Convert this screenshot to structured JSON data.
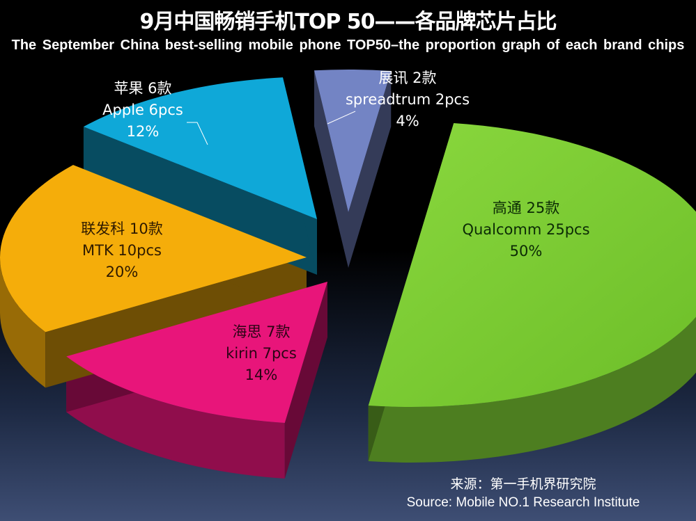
{
  "chart_data": {
    "type": "pie",
    "title": "9月中国畅销手机TOP 50——各品牌芯片占比",
    "subtitle": "The September China best-selling mobile phone TOP50–the proportion graph of each brand chips",
    "slices": [
      {
        "key": "qualcomm",
        "zh": "高通 25款",
        "en": "Qualcomm  25pcs",
        "pct": "50%",
        "value": 25,
        "color": "#7ccc33"
      },
      {
        "key": "kirin",
        "zh": "海思 7款",
        "en": "kirin  7pcs",
        "pct": "14%",
        "value": 7,
        "color": "#e8157a"
      },
      {
        "key": "mtk",
        "zh": "联发科 10款",
        "en": "MTK  10pcs",
        "pct": "20%",
        "value": 10,
        "color": "#f5ad0a"
      },
      {
        "key": "apple",
        "zh": "苹果 6款",
        "en": "Apple   6pcs",
        "pct": "12%",
        "value": 6,
        "color": "#0fa8d8"
      },
      {
        "key": "spreadtrum",
        "zh": "展讯 2款",
        "en": "spreadtrum  2pcs",
        "pct": "4%",
        "value": 2,
        "color": "#7384c4"
      }
    ],
    "legend": "none"
  },
  "source": {
    "zh": "来源：第一手机界研究院",
    "en": "Source: Mobile NO.1 Research Institute"
  }
}
